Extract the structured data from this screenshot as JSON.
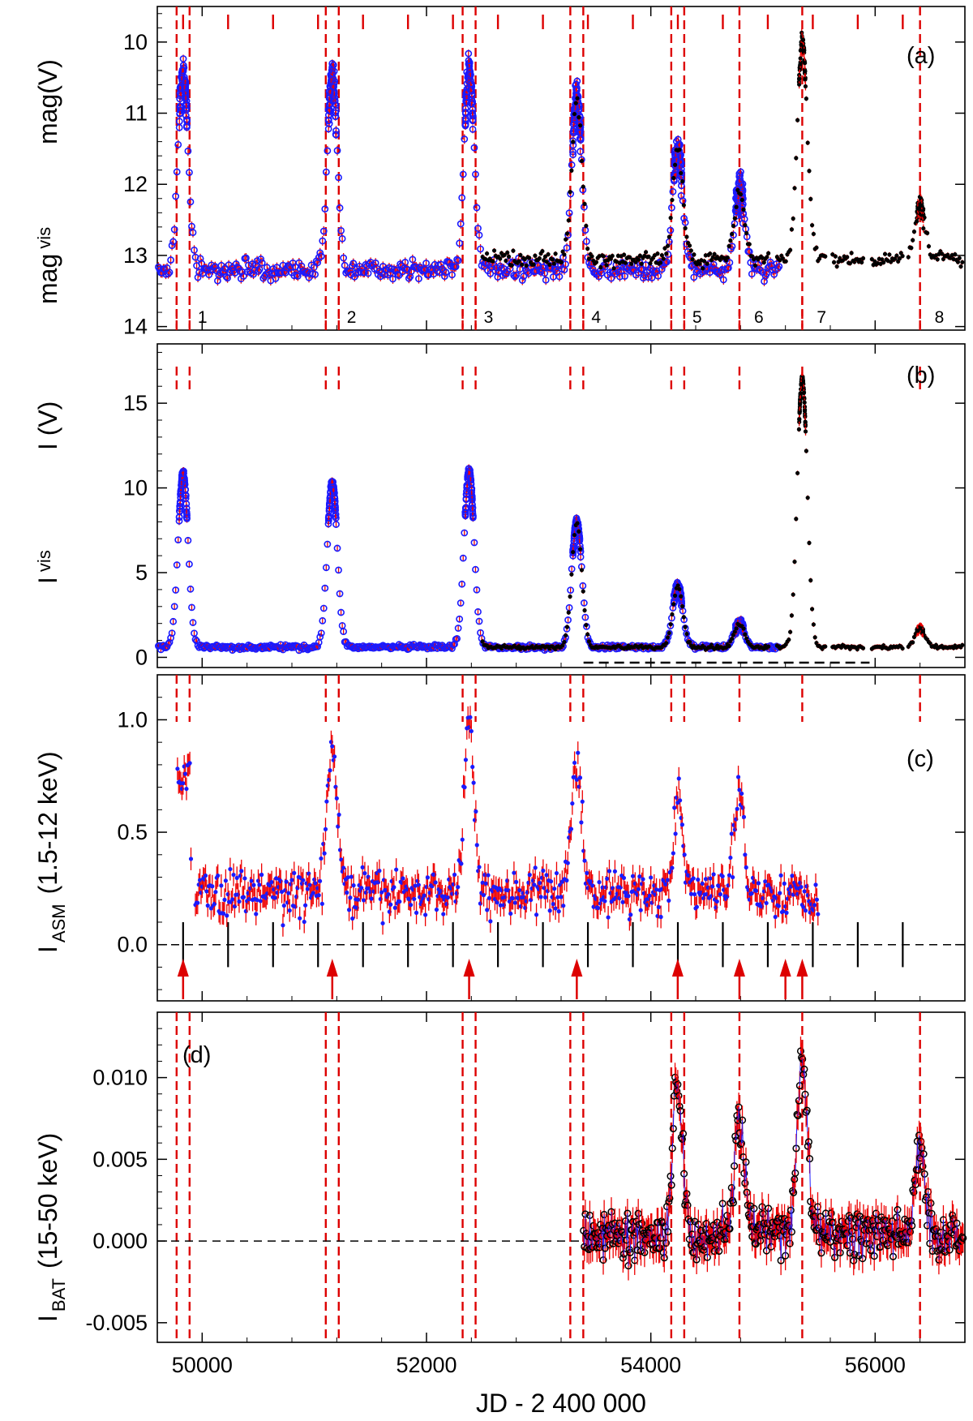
{
  "chart_data": {
    "type": "scatter",
    "xlabel": "JD - 2 400 000",
    "xlim": [
      49600,
      56800
    ],
    "xticks": [
      "50000",
      "52000",
      "54000",
      "56000"
    ],
    "outburst_jd": [
      49830,
      51160,
      52380,
      53340,
      54240,
      54790,
      55350,
      56400
    ],
    "outburst_labels": [
      "1",
      "2",
      "3",
      "4",
      "5",
      "6",
      "7",
      "8"
    ],
    "colors": {
      "vis": "#1a1aff",
      "v": "#000000",
      "err": "#ee0000",
      "marker": "#dd0000"
    },
    "panels": [
      {
        "id": "a",
        "tag": "(a)",
        "ylabel_left": "mag",
        "ylabel_left_sub": "vis",
        "ylabel_right": "mag(V)",
        "ylim": [
          14.05,
          9.5
        ],
        "yticks": [
          "10",
          "11",
          "12",
          "13",
          "14"
        ],
        "ytick_values": [
          10,
          11,
          12,
          13,
          14
        ],
        "series": [
          {
            "name": "mag_vis",
            "baseline": 13.2,
            "peaks": [
              [
                49830,
                10.4
              ],
              [
                51160,
                10.5
              ],
              [
                52380,
                10.4
              ],
              [
                53340,
                10.8
              ],
              [
                54240,
                11.5
              ],
              [
                54790,
                12.1
              ]
            ]
          },
          {
            "name": "mag(V)",
            "baseline": 13.05,
            "peaks": [
              [
                55350,
                10.0
              ],
              [
                56400,
                12.3
              ]
            ]
          }
        ]
      },
      {
        "id": "b",
        "tag": "(b)",
        "ylabel_left": "I",
        "ylabel_left_sub": "vis",
        "ylabel_right": "I (V)",
        "ylim": [
          -0.6,
          18.5
        ],
        "yticks": [
          "0",
          "5",
          "10",
          "15"
        ],
        "ytick_values": [
          0,
          5,
          10,
          15
        ],
        "series": [
          {
            "name": "I_vis",
            "baseline": 0.6,
            "peaks": [
              [
                49830,
                10.8
              ],
              [
                51160,
                10.3
              ],
              [
                52380,
                11.0
              ],
              [
                53340,
                8.0
              ],
              [
                54240,
                4.2
              ],
              [
                54790,
                2.0
              ]
            ]
          },
          {
            "name": "I(V)",
            "baseline": 0.6,
            "peaks": [
              [
                55350,
                16.5
              ],
              [
                56400,
                1.7
              ]
            ]
          }
        ]
      },
      {
        "id": "c",
        "tag": "(c)",
        "ylabel": "I",
        "ylabel_sub": "ASM",
        "ylabel_tail": "(1.5-12 keV)",
        "ylim": [
          -0.25,
          1.2
        ],
        "yticks": [
          "0.0",
          "0.5",
          "1.0"
        ],
        "ytick_values": [
          0,
          0.5,
          1.0
        ],
        "data_range": [
          49900,
          55500
        ],
        "baseline": 0.23,
        "peaks": [
          [
            49830,
            0.82
          ],
          [
            51160,
            0.88
          ],
          [
            52380,
            0.98
          ],
          [
            53340,
            0.83
          ],
          [
            54240,
            0.62
          ],
          [
            54790,
            0.68
          ]
        ]
      },
      {
        "id": "d",
        "tag": "(d)",
        "ylabel": "I",
        "ylabel_sub": "BAT",
        "ylabel_tail": "(15-50 keV)",
        "ylim": [
          -0.0062,
          0.014
        ],
        "yticks": [
          "0.010",
          "0.005",
          "0.000",
          "-0.005"
        ],
        "ytick_values": [
          0.01,
          0.005,
          0.0,
          -0.005
        ],
        "data_range": [
          53400,
          56800
        ],
        "baseline": 0.0004,
        "peaks": [
          [
            54240,
            0.0095
          ],
          [
            54790,
            0.0075
          ],
          [
            55350,
            0.0112
          ],
          [
            56400,
            0.0055
          ]
        ]
      }
    ]
  }
}
